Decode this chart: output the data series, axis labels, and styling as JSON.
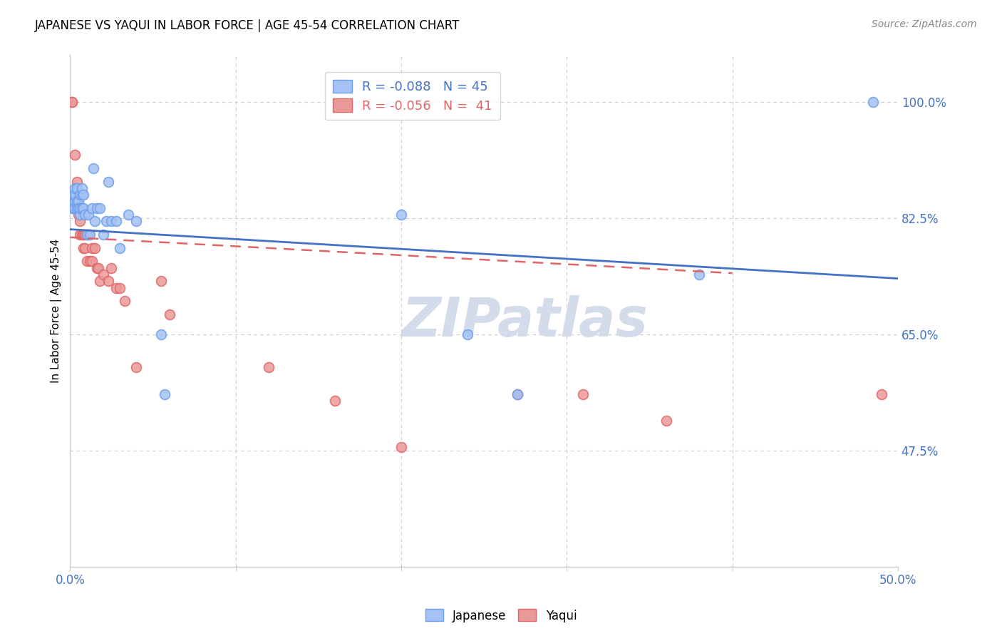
{
  "title": "JAPANESE VS YAQUI IN LABOR FORCE | AGE 45-54 CORRELATION CHART",
  "source": "Source: ZipAtlas.com",
  "ylabel": "In Labor Force | Age 45-54",
  "xlim": [
    0.0,
    0.5
  ],
  "ylim": [
    0.3,
    1.07
  ],
  "ytick_labels_right": [
    "100.0%",
    "82.5%",
    "65.0%",
    "47.5%"
  ],
  "ytick_positions_right": [
    1.0,
    0.825,
    0.65,
    0.475
  ],
  "grid_color": "#cccccc",
  "background_color": "#ffffff",
  "legend_R_japanese": "-0.088",
  "legend_N_japanese": "45",
  "legend_R_yaqui": "-0.056",
  "legend_N_yaqui": " 41",
  "watermark": "ZIPatlas",
  "japanese_color": "#a4c2f4",
  "yaqui_color": "#ea9999",
  "japanese_edge_color": "#6d9eeb",
  "yaqui_edge_color": "#e06666",
  "japanese_line_color": "#4472c4",
  "yaqui_line_color": "#e06666",
  "marker_size": 100,
  "marker_linewidth": 1.2,
  "japanese_x": [
    0.001,
    0.001,
    0.002,
    0.002,
    0.003,
    0.003,
    0.003,
    0.003,
    0.004,
    0.004,
    0.004,
    0.005,
    0.005,
    0.006,
    0.006,
    0.006,
    0.007,
    0.007,
    0.007,
    0.008,
    0.008,
    0.009,
    0.01,
    0.011,
    0.012,
    0.013,
    0.014,
    0.015,
    0.016,
    0.018,
    0.02,
    0.022,
    0.023,
    0.025,
    0.028,
    0.03,
    0.035,
    0.04,
    0.055,
    0.057,
    0.2,
    0.24,
    0.27,
    0.38,
    0.485
  ],
  "japanese_y": [
    0.84,
    0.85,
    0.84,
    0.86,
    0.84,
    0.85,
    0.86,
    0.87,
    0.84,
    0.85,
    0.87,
    0.85,
    0.84,
    0.83,
    0.84,
    0.86,
    0.84,
    0.86,
    0.87,
    0.84,
    0.86,
    0.83,
    0.8,
    0.83,
    0.8,
    0.84,
    0.9,
    0.82,
    0.84,
    0.84,
    0.8,
    0.82,
    0.88,
    0.82,
    0.82,
    0.78,
    0.83,
    0.82,
    0.65,
    0.56,
    0.83,
    0.65,
    0.56,
    0.74,
    1.0
  ],
  "yaqui_x": [
    0.001,
    0.001,
    0.003,
    0.004,
    0.004,
    0.005,
    0.005,
    0.006,
    0.006,
    0.007,
    0.007,
    0.008,
    0.008,
    0.009,
    0.009,
    0.01,
    0.01,
    0.011,
    0.012,
    0.013,
    0.013,
    0.015,
    0.016,
    0.017,
    0.018,
    0.02,
    0.023,
    0.025,
    0.028,
    0.03,
    0.033,
    0.04,
    0.055,
    0.06,
    0.12,
    0.16,
    0.2,
    0.27,
    0.31,
    0.36,
    0.49
  ],
  "yaqui_y": [
    1.0,
    1.0,
    0.92,
    0.88,
    0.84,
    0.83,
    0.84,
    0.82,
    0.8,
    0.8,
    0.84,
    0.8,
    0.78,
    0.8,
    0.78,
    0.8,
    0.76,
    0.8,
    0.76,
    0.78,
    0.76,
    0.78,
    0.75,
    0.75,
    0.73,
    0.74,
    0.73,
    0.75,
    0.72,
    0.72,
    0.7,
    0.6,
    0.73,
    0.68,
    0.6,
    0.55,
    0.48,
    0.56,
    0.56,
    0.52,
    0.56
  ],
  "jap_trend_x": [
    0.0,
    0.5
  ],
  "jap_trend_y": [
    0.808,
    0.734
  ],
  "yaq_trend_x": [
    0.0,
    0.4
  ],
  "yaq_trend_y": [
    0.796,
    0.742
  ]
}
